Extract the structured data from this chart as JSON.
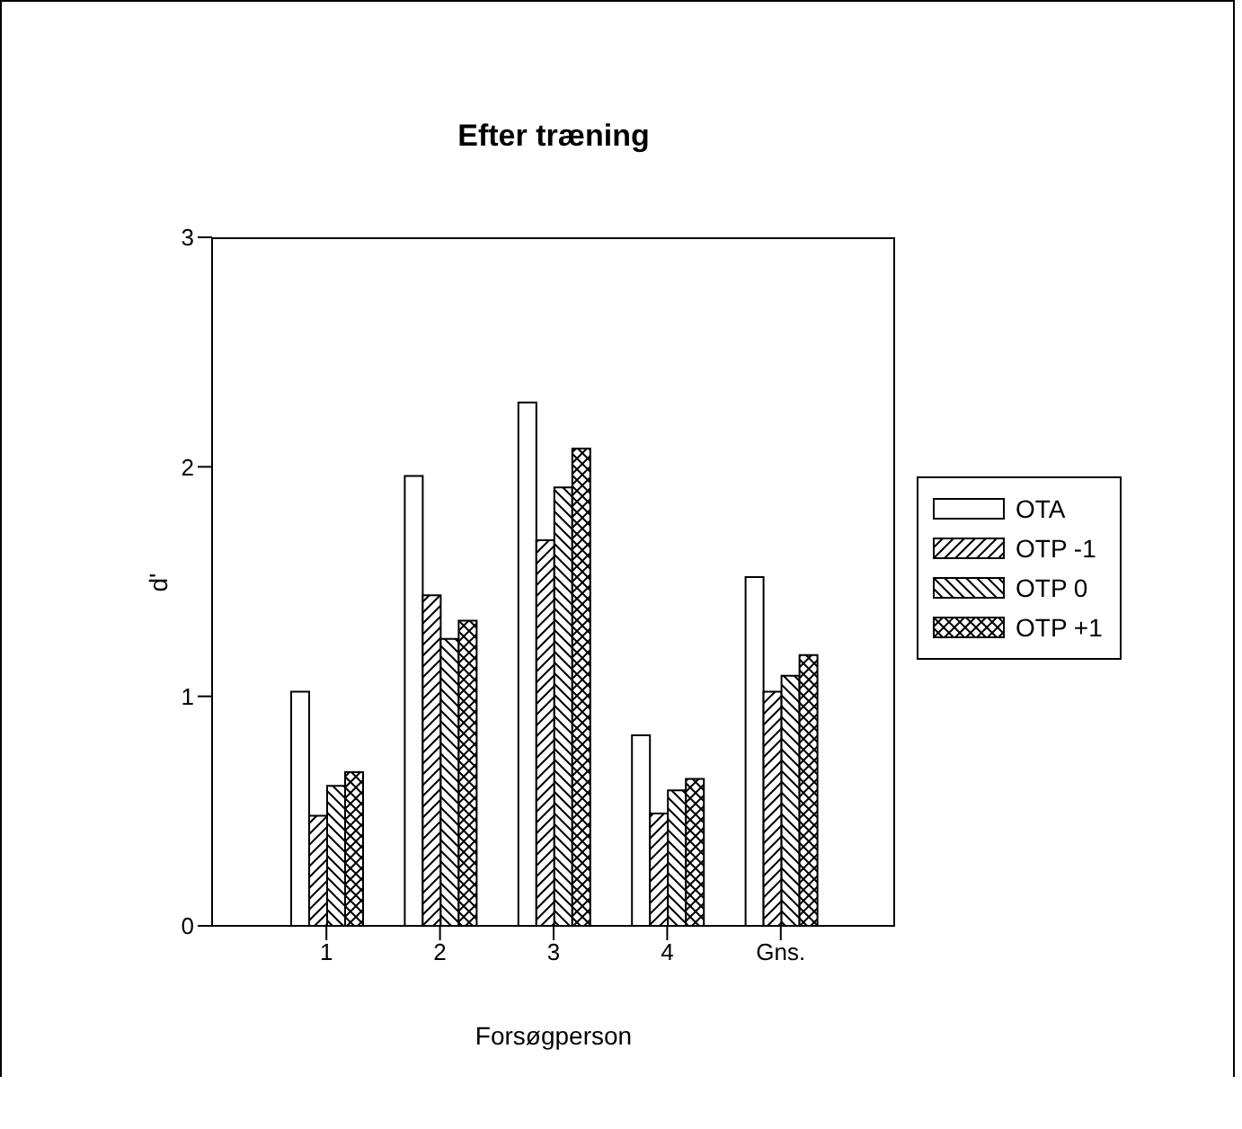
{
  "chart_data": {
    "type": "bar",
    "title": "Efter træning",
    "xlabel": "Forsøgperson",
    "ylabel": "d'",
    "categories": [
      "1",
      "2",
      "3",
      "4",
      "Gns."
    ],
    "series": [
      {
        "name": "OTA",
        "color": "#ffffff",
        "values": [
          1.02,
          1.96,
          2.28,
          0.83,
          1.52
        ]
      },
      {
        "name": "OTP -1",
        "color": "#000000",
        "values": [
          0.48,
          1.44,
          1.68,
          0.49,
          1.02
        ]
      },
      {
        "name": "OTP 0",
        "color": "#000000",
        "values": [
          0.61,
          1.25,
          1.91,
          0.59,
          1.09
        ]
      },
      {
        "name": "OTP +1",
        "color": "#000000",
        "values": [
          0.67,
          1.33,
          2.08,
          0.64,
          1.18
        ]
      }
    ],
    "ylim": [
      0,
      3
    ],
    "yticks": [
      0,
      1,
      2,
      3
    ],
    "grid": false,
    "legend": "right"
  }
}
